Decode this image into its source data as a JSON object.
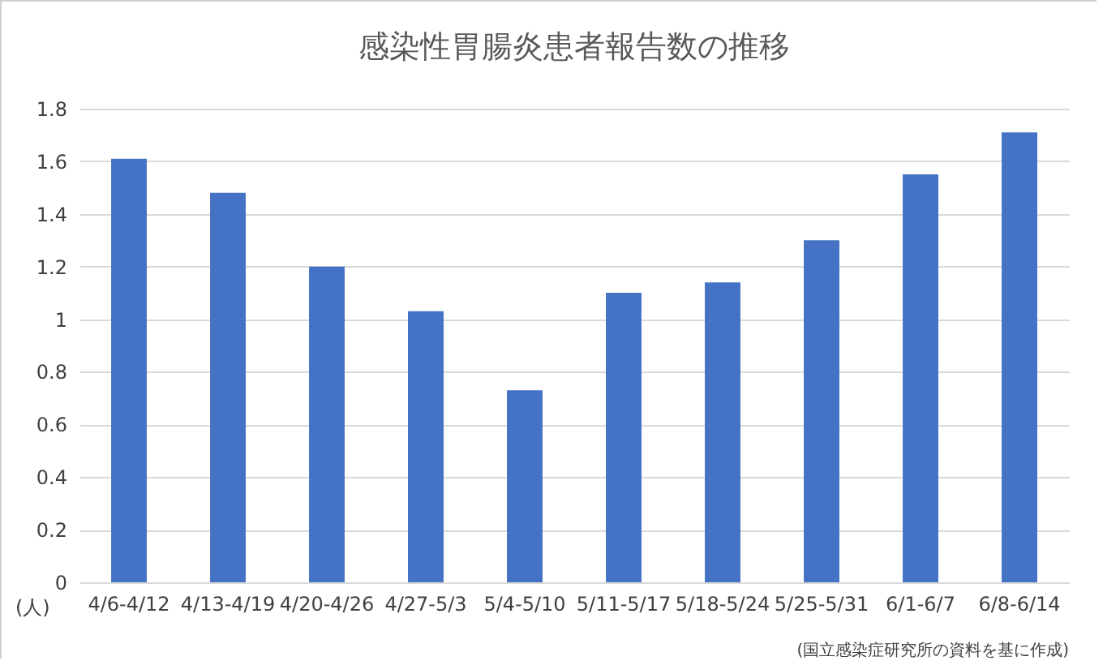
{
  "chart_data": {
    "type": "bar",
    "title": "感染性胃腸炎患者報告数の推移",
    "ylabel": "(人)",
    "categories": [
      "4/6-4/12",
      "4/13-4/19",
      "4/20-4/26",
      "4/27-5/3",
      "5/4-5/10",
      "5/11-5/17",
      "5/18-5/24",
      "5/25-5/31",
      "6/1-6/7",
      "6/8-6/14"
    ],
    "values": [
      1.61,
      1.48,
      1.2,
      1.03,
      0.73,
      1.1,
      1.14,
      1.3,
      1.55,
      1.71
    ],
    "color": "#4472c4",
    "ylim": [
      0,
      1.8
    ],
    "yticks": [
      0,
      0.2,
      0.4,
      0.6,
      0.8,
      1,
      1.2,
      1.4,
      1.6,
      1.8
    ],
    "grid": "y",
    "annotations": [
      "(国立感染症研究所の資料を基に作成)"
    ]
  }
}
